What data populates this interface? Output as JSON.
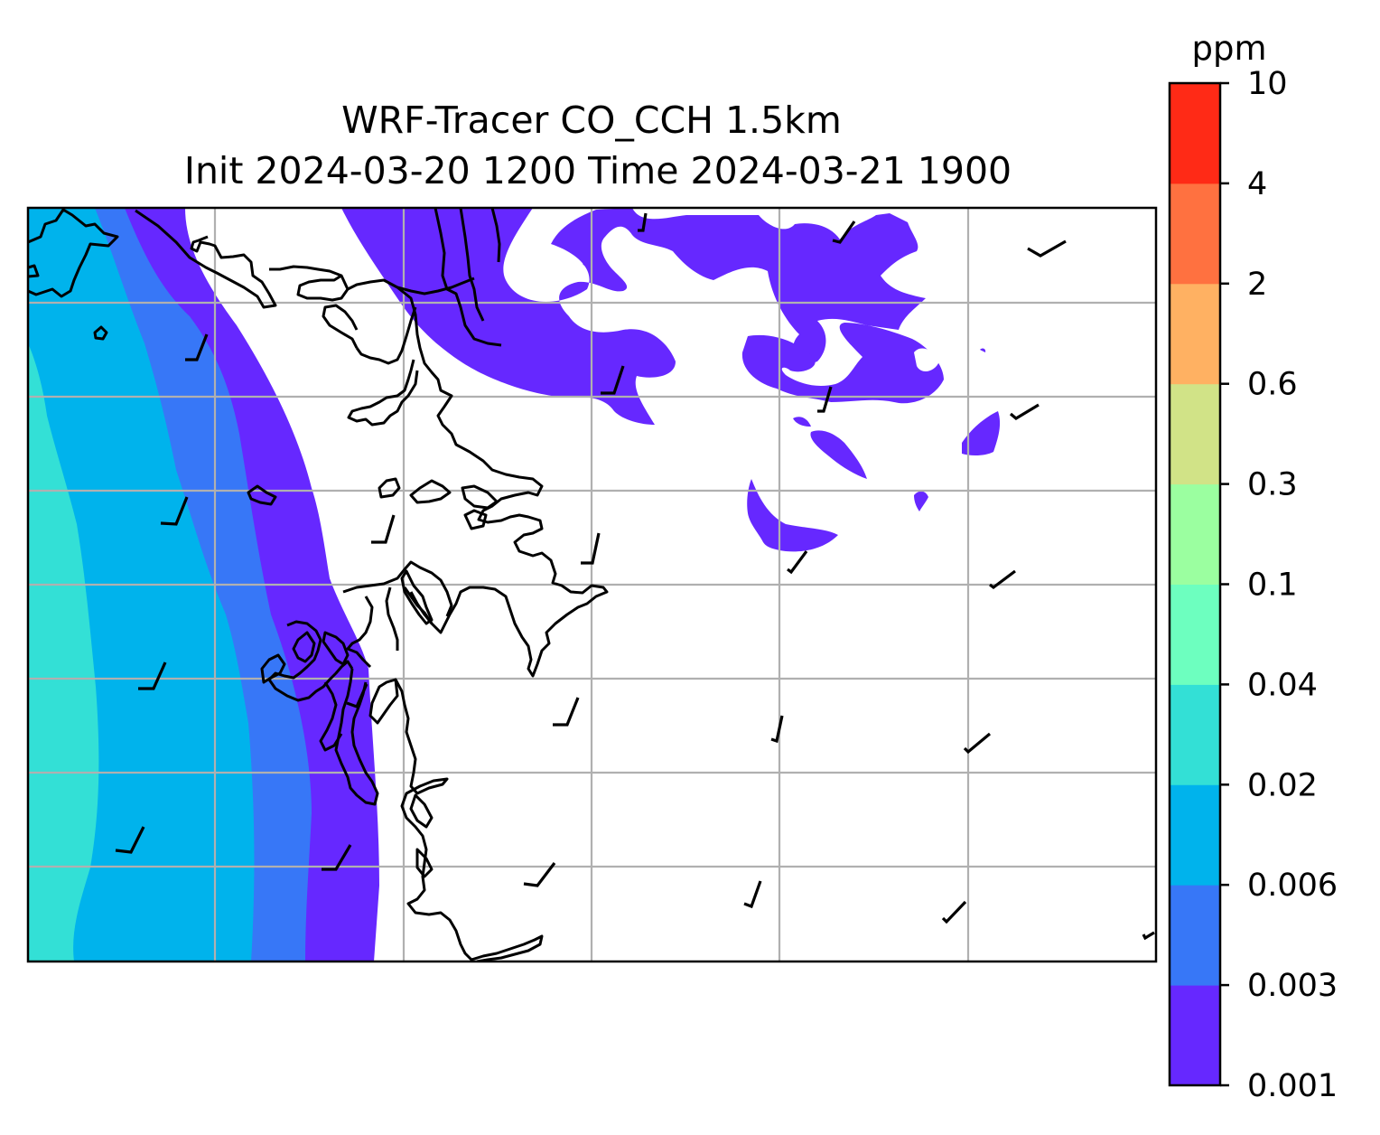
{
  "title": {
    "line1": "WRF-Tracer CO_CCH 1.5km",
    "line2": "Init 2024-03-20 1200 Time 2024-03-21 1900"
  },
  "colorbar": {
    "unit": "ppm",
    "levels": [
      "0.001",
      "0.003",
      "0.006",
      "0.02",
      "0.04",
      "0.1",
      "0.3",
      "0.6",
      "2",
      "4",
      "10"
    ],
    "colors": [
      "#6628ff",
      "#3777f7",
      "#00b3ec",
      "#33e0d6",
      "#6dffbf",
      "#9bffa0",
      "#d1e387",
      "#ffb162",
      "#ff7140",
      "#ff2a16"
    ]
  },
  "map": {
    "coastline_color": "#000000",
    "gridline_color": "#b0b0b0"
  }
}
